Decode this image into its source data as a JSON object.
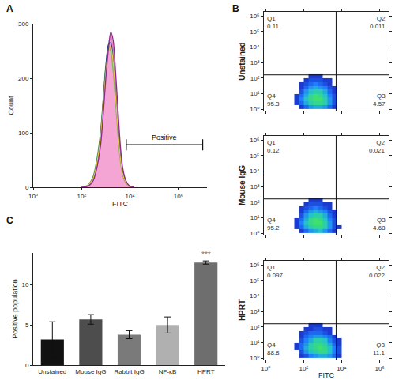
{
  "chart_data": [
    {
      "type": "line",
      "panel": "A",
      "x_label": "FITC",
      "y_label": "Count",
      "log": "x",
      "x": [
        100,
        150,
        200,
        300,
        400,
        600,
        800,
        1000,
        1300,
        1600,
        2000,
        2500,
        3200,
        4000,
        5000,
        6500,
        8000,
        10000,
        15000
      ],
      "series": [
        {
          "type": "area",
          "color": "#f07cc0",
          "values": [
            0,
            1,
            4,
            15,
            35,
            85,
            150,
            210,
            262,
            280,
            255,
            195,
            120,
            65,
            30,
            12,
            5,
            2,
            0
          ]
        },
        {
          "type": "line",
          "color": "#6cc04a",
          "values": [
            0,
            2,
            6,
            20,
            45,
            100,
            170,
            225,
            258,
            250,
            215,
            160,
            95,
            48,
            22,
            9,
            4,
            1,
            0
          ]
        },
        {
          "type": "line",
          "color": "#1f3f8f",
          "values": [
            0,
            1,
            5,
            18,
            40,
            95,
            165,
            220,
            262,
            265,
            235,
            175,
            105,
            55,
            25,
            10,
            4,
            1,
            0
          ]
        },
        {
          "type": "line",
          "color": "#e0c840",
          "values": [
            0,
            1,
            5,
            17,
            38,
            90,
            155,
            210,
            250,
            258,
            230,
            170,
            102,
            52,
            24,
            10,
            4,
            1,
            0
          ]
        },
        {
          "type": "line",
          "color": "#8b2a8b",
          "values": [
            0,
            1,
            3,
            12,
            30,
            75,
            140,
            200,
            255,
            285,
            270,
            215,
            140,
            75,
            35,
            14,
            6,
            2,
            0
          ]
        }
      ],
      "xlim": [
        1,
        15000000
      ],
      "xticks": [
        {
          "value": 1,
          "label": "10⁰"
        },
        {
          "value": 100,
          "label": "10²"
        },
        {
          "value": 10000,
          "label": "10⁴"
        },
        {
          "value": 1000000,
          "label": "10⁶"
        }
      ],
      "ylim": [
        0,
        300
      ],
      "yticks": [
        0,
        100,
        200,
        300
      ],
      "gate": {
        "label": "Positive",
        "x": [
          7000,
          10000000
        ],
        "y": 78
      }
    },
    {
      "type": "density",
      "panel": "B",
      "y_label": "Unstained",
      "log": true,
      "tick_labels": "y",
      "x_bins": [
        32,
        56,
        100,
        178,
        316,
        562,
        1000,
        1778,
        3162,
        5623,
        10000
      ],
      "y_bins": [
        1,
        1.8,
        3.2,
        5.6,
        10,
        18,
        32,
        56,
        100,
        178,
        316
      ],
      "density": [
        [
          0,
          1,
          3,
          5,
          6,
          6,
          5,
          3,
          1,
          0
        ],
        [
          1,
          3,
          6,
          8,
          9,
          9,
          8,
          5,
          2,
          0
        ],
        [
          1,
          4,
          7,
          9,
          10,
          10,
          8,
          5,
          2,
          0
        ],
        [
          1,
          3,
          6,
          9,
          10,
          9,
          7,
          4,
          2,
          0
        ],
        [
          0,
          2,
          5,
          7,
          8,
          8,
          6,
          3,
          1,
          0
        ],
        [
          0,
          1,
          3,
          5,
          6,
          5,
          4,
          2,
          1,
          0
        ],
        [
          0,
          1,
          2,
          3,
          4,
          3,
          2,
          1,
          0,
          0
        ],
        [
          0,
          0,
          1,
          2,
          2,
          2,
          1,
          1,
          0,
          0
        ],
        [
          0,
          0,
          0,
          1,
          1,
          1,
          0,
          0,
          0,
          0
        ],
        [
          0,
          0,
          0,
          0,
          0,
          0,
          0,
          0,
          0,
          0
        ]
      ],
      "gates": {
        "x": 5100,
        "y": 160
      },
      "quadrants": [
        {
          "name": "Q1",
          "value": 0.11
        },
        {
          "name": "Q2",
          "value": 0.011
        },
        {
          "name": "Q3",
          "value": 4.57
        },
        {
          "name": "Q4",
          "value": 95.3
        }
      ],
      "xlim": [
        0.8,
        3000000
      ],
      "xticks": [
        {
          "value": 1,
          "label": "10⁰"
        },
        {
          "value": 100,
          "label": "10²"
        },
        {
          "value": 10000,
          "label": "10⁴"
        },
        {
          "value": 1000000,
          "label": "10⁶"
        }
      ],
      "ylim": [
        0.8,
        1800000
      ],
      "yticks": [
        {
          "value": 1,
          "label": "10⁰"
        },
        {
          "value": 10,
          "label": "10¹"
        },
        {
          "value": 100,
          "label": "10²"
        },
        {
          "value": 1000,
          "label": "10³"
        },
        {
          "value": 10000,
          "label": "10⁴"
        },
        {
          "value": 100000,
          "label": "10⁵"
        },
        {
          "value": 1000000,
          "label": "10⁶"
        }
      ]
    },
    {
      "type": "density",
      "y_label": "Mouse IgG",
      "log": true,
      "tick_labels": "y",
      "x_bins": [
        32,
        56,
        100,
        178,
        316,
        562,
        1000,
        1778,
        3162,
        5623,
        10000
      ],
      "y_bins": [
        1,
        1.8,
        3.2,
        5.6,
        10,
        18,
        32,
        56,
        100,
        178,
        316
      ],
      "density": [
        [
          0,
          1,
          3,
          5,
          6,
          7,
          5,
          3,
          1,
          0
        ],
        [
          1,
          3,
          6,
          8,
          9,
          9,
          8,
          5,
          2,
          1
        ],
        [
          1,
          4,
          7,
          9,
          10,
          10,
          8,
          5,
          2,
          0
        ],
        [
          1,
          3,
          6,
          9,
          10,
          9,
          7,
          4,
          2,
          0
        ],
        [
          0,
          2,
          5,
          7,
          8,
          8,
          6,
          3,
          1,
          0
        ],
        [
          0,
          1,
          3,
          5,
          6,
          5,
          4,
          2,
          1,
          0
        ],
        [
          0,
          1,
          2,
          3,
          4,
          3,
          2,
          1,
          0,
          0
        ],
        [
          0,
          0,
          1,
          2,
          2,
          2,
          1,
          1,
          0,
          0
        ],
        [
          0,
          0,
          0,
          1,
          1,
          1,
          0,
          0,
          0,
          0
        ],
        [
          0,
          0,
          0,
          0,
          0,
          0,
          0,
          0,
          0,
          0
        ]
      ],
      "gates": {
        "x": 5100,
        "y": 160
      },
      "quadrants": [
        {
          "name": "Q1",
          "value": 0.12
        },
        {
          "name": "Q2",
          "value": 0.021
        },
        {
          "name": "Q3",
          "value": 4.68
        },
        {
          "name": "Q4",
          "value": 95.2
        }
      ],
      "xlim": [
        0.8,
        3000000
      ],
      "xticks": [
        {
          "value": 1,
          "label": "10⁰"
        },
        {
          "value": 100,
          "label": "10²"
        },
        {
          "value": 10000,
          "label": "10⁴"
        },
        {
          "value": 1000000,
          "label": "10⁶"
        }
      ],
      "ylim": [
        0.8,
        1800000
      ],
      "yticks": [
        {
          "value": 1,
          "label": "10⁰"
        },
        {
          "value": 10,
          "label": "10¹"
        },
        {
          "value": 100,
          "label": "10²"
        },
        {
          "value": 1000,
          "label": "10³"
        },
        {
          "value": 10000,
          "label": "10⁴"
        },
        {
          "value": 100000,
          "label": "10⁵"
        },
        {
          "value": 1000000,
          "label": "10⁶"
        }
      ]
    },
    {
      "type": "density",
      "y_label": "HPRT",
      "x_label": "FITC",
      "log": true,
      "x_bins": [
        32,
        56,
        100,
        178,
        316,
        562,
        1000,
        1778,
        3162,
        5623,
        10000
      ],
      "y_bins": [
        1,
        1.8,
        3.2,
        5.6,
        10,
        18,
        32,
        56,
        100,
        178,
        316
      ],
      "density": [
        [
          0,
          1,
          2,
          4,
          5,
          6,
          6,
          5,
          3,
          1
        ],
        [
          0,
          2,
          5,
          7,
          8,
          9,
          9,
          7,
          4,
          2
        ],
        [
          1,
          3,
          6,
          8,
          9,
          10,
          9,
          7,
          4,
          2
        ],
        [
          1,
          3,
          5,
          8,
          9,
          9,
          8,
          6,
          3,
          1
        ],
        [
          0,
          2,
          4,
          6,
          8,
          8,
          7,
          4,
          2,
          1
        ],
        [
          0,
          1,
          3,
          4,
          5,
          5,
          4,
          3,
          1,
          0
        ],
        [
          0,
          1,
          2,
          3,
          3,
          3,
          2,
          1,
          0,
          0
        ],
        [
          0,
          0,
          1,
          1,
          2,
          2,
          1,
          1,
          0,
          0
        ],
        [
          0,
          0,
          0,
          1,
          1,
          1,
          0,
          0,
          0,
          0
        ],
        [
          0,
          0,
          0,
          0,
          0,
          0,
          0,
          0,
          0,
          0
        ]
      ],
      "gates": {
        "x": 5100,
        "y": 160
      },
      "quadrants": [
        {
          "name": "Q1",
          "value": 0.097
        },
        {
          "name": "Q2",
          "value": 0.022
        },
        {
          "name": "Q3",
          "value": 11.1
        },
        {
          "name": "Q4",
          "value": 88.8
        }
      ],
      "xlim": [
        0.8,
        3000000
      ],
      "xticks": [
        {
          "value": 1,
          "label": "10⁰"
        },
        {
          "value": 100,
          "label": "10²"
        },
        {
          "value": 10000,
          "label": "10⁴"
        },
        {
          "value": 1000000,
          "label": "10⁶"
        }
      ],
      "ylim": [
        0.8,
        1800000
      ],
      "yticks": [
        {
          "value": 1,
          "label": "10⁰"
        },
        {
          "value": 10,
          "label": "10¹"
        },
        {
          "value": 100,
          "label": "10²"
        },
        {
          "value": 1000,
          "label": "10³"
        },
        {
          "value": 10000,
          "label": "10⁴"
        },
        {
          "value": 100000,
          "label": "10⁵"
        },
        {
          "value": 1000000,
          "label": "10⁶"
        }
      ]
    },
    {
      "type": "bar",
      "panel": "C",
      "y_label": "Positive population",
      "categories": [
        "Unstained",
        "Mouse IgG",
        "Rabbit IgG",
        "NF-κB",
        "HPRT"
      ],
      "values": [
        3.2,
        5.7,
        3.8,
        5.0,
        12.8
      ],
      "errors": [
        2.2,
        0.6,
        0.5,
        1.0,
        0.2
      ],
      "colors": [
        "#111111",
        "#4d4d4d",
        "#7a7a7a",
        "#b0b0b0",
        "#6e6e6e"
      ],
      "ylim": [
        0,
        14
      ],
      "yticks": [
        0,
        5,
        10
      ],
      "annotations": [
        {
          "text": "***",
          "category": "HPRT"
        }
      ]
    }
  ]
}
